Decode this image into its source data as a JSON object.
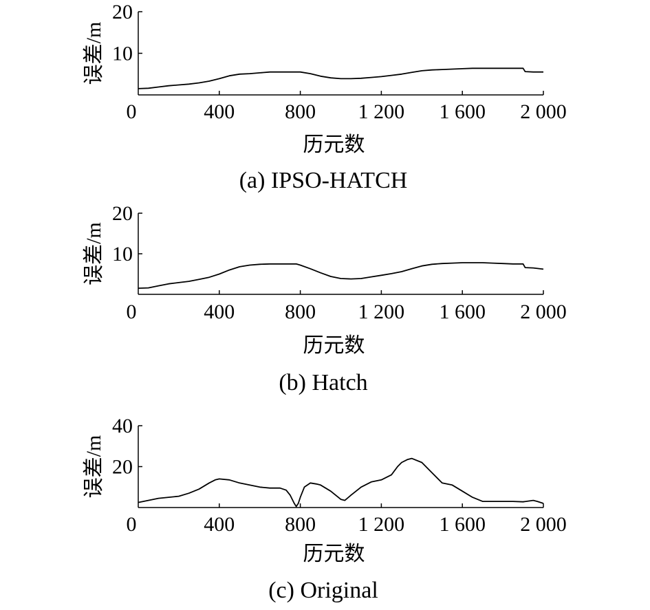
{
  "chart_data": [
    {
      "type": "line",
      "caption": "(a) IPSO-HATCH",
      "xlabel": "历元数",
      "ylabel": "误差/m",
      "xlim": [
        0,
        2000
      ],
      "ylim": [
        0,
        20
      ],
      "xticks": [
        0,
        400,
        800,
        1200,
        1600,
        2000
      ],
      "xtick_labels": [
        "0",
        "400",
        "800",
        "1 200",
        "1 600",
        "2 000"
      ],
      "yticks": [
        10,
        20
      ],
      "ytick_labels": [
        "10",
        "20"
      ],
      "grid": false,
      "series": [
        {
          "x": [
            0,
            50,
            100,
            150,
            200,
            250,
            300,
            350,
            400,
            450,
            500,
            550,
            600,
            650,
            700,
            750,
            800,
            850,
            900,
            950,
            1000,
            1050,
            1100,
            1150,
            1200,
            1250,
            1300,
            1350,
            1400,
            1450,
            1500,
            1550,
            1600,
            1650,
            1700,
            1750,
            1800,
            1850,
            1900,
            1910,
            1950,
            2000
          ],
          "y": [
            1.5,
            1.6,
            1.9,
            2.2,
            2.4,
            2.6,
            2.9,
            3.3,
            3.9,
            4.6,
            5.0,
            5.1,
            5.3,
            5.5,
            5.5,
            5.5,
            5.5,
            5.1,
            4.5,
            4.1,
            3.9,
            3.9,
            4.0,
            4.2,
            4.4,
            4.7,
            5.0,
            5.4,
            5.8,
            6.0,
            6.1,
            6.2,
            6.3,
            6.4,
            6.4,
            6.4,
            6.4,
            6.4,
            6.4,
            5.6,
            5.5,
            5.5
          ]
        }
      ]
    },
    {
      "type": "line",
      "caption": "(b) Hatch",
      "xlabel": "历元数",
      "ylabel": "误差/m",
      "xlim": [
        0,
        2000
      ],
      "ylim": [
        0,
        20
      ],
      "xticks": [
        0,
        400,
        800,
        1200,
        1600,
        2000
      ],
      "xtick_labels": [
        "0",
        "400",
        "800",
        "1 200",
        "1 600",
        "2 000"
      ],
      "yticks": [
        10,
        20
      ],
      "ytick_labels": [
        "10",
        "20"
      ],
      "grid": false,
      "series": [
        {
          "x": [
            0,
            50,
            100,
            150,
            200,
            250,
            300,
            350,
            400,
            450,
            500,
            550,
            600,
            650,
            700,
            750,
            780,
            800,
            850,
            900,
            950,
            1000,
            1050,
            1100,
            1150,
            1200,
            1250,
            1300,
            1350,
            1400,
            1450,
            1500,
            1550,
            1600,
            1650,
            1700,
            1750,
            1800,
            1850,
            1900,
            1910,
            1950,
            2000
          ],
          "y": [
            1.5,
            1.6,
            2.1,
            2.6,
            2.9,
            3.2,
            3.7,
            4.2,
            5.0,
            6.0,
            6.8,
            7.2,
            7.4,
            7.5,
            7.5,
            7.5,
            7.5,
            7.2,
            6.3,
            5.3,
            4.4,
            3.9,
            3.8,
            3.9,
            4.3,
            4.7,
            5.1,
            5.6,
            6.3,
            7.0,
            7.4,
            7.6,
            7.7,
            7.8,
            7.8,
            7.8,
            7.7,
            7.6,
            7.5,
            7.5,
            6.6,
            6.5,
            6.2
          ]
        }
      ]
    },
    {
      "type": "line",
      "caption": "(c) Original",
      "xlabel": "历元数",
      "ylabel": "误差/m",
      "xlim": [
        0,
        2000
      ],
      "ylim": [
        0,
        40
      ],
      "xticks": [
        0,
        400,
        800,
        1200,
        1600,
        2000
      ],
      "xtick_labels": [
        "0",
        "400",
        "800",
        "1 200",
        "1 600",
        "2 000"
      ],
      "yticks": [
        20,
        40
      ],
      "ytick_labels": [
        "20",
        "40"
      ],
      "grid": false,
      "series": [
        {
          "x": [
            0,
            50,
            100,
            150,
            200,
            250,
            300,
            350,
            380,
            400,
            450,
            500,
            550,
            600,
            650,
            700,
            730,
            750,
            770,
            780,
            790,
            800,
            820,
            850,
            880,
            900,
            950,
            1000,
            1020,
            1050,
            1100,
            1150,
            1200,
            1250,
            1280,
            1300,
            1330,
            1350,
            1400,
            1450,
            1500,
            1550,
            1600,
            1650,
            1700,
            1750,
            1800,
            1850,
            1900,
            1950,
            1970,
            2000
          ],
          "y": [
            2.5,
            3.5,
            4.5,
            5,
            5.5,
            7,
            9,
            12,
            13.5,
            14,
            13.5,
            12,
            11,
            10,
            9.5,
            9.5,
            8.5,
            6,
            2,
            0.5,
            2,
            5,
            10,
            12,
            11.5,
            11,
            8,
            4,
            3.5,
            6,
            10,
            12.5,
            13.5,
            16,
            20,
            22,
            23.5,
            24,
            22,
            17,
            12,
            11,
            8,
            5,
            3,
            3,
            3,
            3,
            2.8,
            3.5,
            3,
            2
          ]
        }
      ]
    }
  ]
}
